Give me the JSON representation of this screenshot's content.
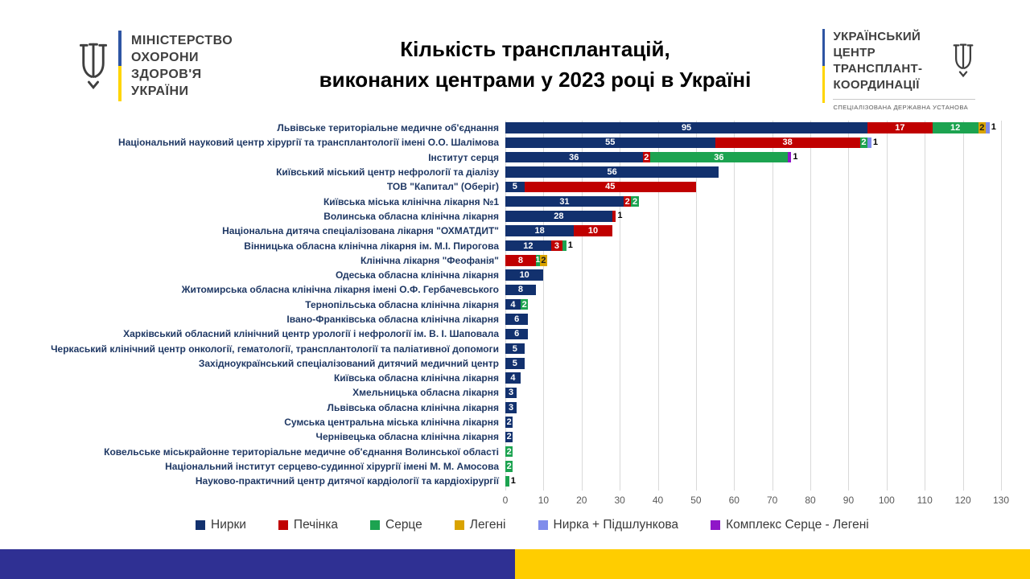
{
  "header": {
    "moh_logo": {
      "lines": [
        "МІНІСТЕРСТВО",
        "ОХОРОНИ",
        "ЗДОРОВ'Я",
        "УКРАЇНИ"
      ]
    },
    "title_line1": "Кількість трансплантацій,",
    "title_line2": "виконаних центрами у 2023 році в Україні",
    "uctc_logo": {
      "lines": [
        "УКРАЇНСЬКИЙ ЦЕНТР",
        "ТРАНСПЛАНТ-",
        "КООРДИНАЦІЇ"
      ],
      "subtitle": "СПЕЦІАЛІЗОВАНА ДЕРЖАВНА УСТАНОВА"
    }
  },
  "chart_data": {
    "type": "bar",
    "stacked": true,
    "orientation": "horizontal",
    "title": "Кількість трансплантацій, виконаних центрами у 2023 році в Україні",
    "xlim": [
      0,
      130
    ],
    "x_ticks": [
      0,
      10,
      20,
      30,
      40,
      50,
      60,
      70,
      80,
      90,
      100,
      110,
      120,
      130
    ],
    "grid": true,
    "legend_position": "bottom",
    "series_names": [
      "Нирки",
      "Печінка",
      "Серце",
      "Легені",
      "Нирка + Підшлункова",
      "Комплекс Серце - Легені"
    ],
    "series_colors": [
      "#12316E",
      "#C00000",
      "#1CA350",
      "#D9A300",
      "#7F8CEB",
      "#8F16C8"
    ],
    "rows": [
      {
        "label": "Львівське територіальне медичне об'єднання",
        "values": [
          95,
          17,
          12,
          2,
          1,
          0
        ]
      },
      {
        "label": "Національний науковий центр хірургії та трансплантології імені О.О. Шалімова",
        "values": [
          55,
          38,
          2,
          0,
          1,
          0
        ]
      },
      {
        "label": "Інститут серця",
        "values": [
          36,
          2,
          36,
          0,
          0,
          1
        ]
      },
      {
        "label": "Київський міський центр нефрології та діалізу",
        "values": [
          56,
          0,
          0,
          0,
          0,
          0
        ]
      },
      {
        "label": "ТОВ \"Капитал\" (Оберіг)",
        "values": [
          5,
          45,
          0,
          0,
          0,
          0
        ]
      },
      {
        "label": "Київська міська клінічна лікарня №1",
        "values": [
          31,
          2,
          2,
          0,
          0,
          0
        ]
      },
      {
        "label": "Волинська обласна клінічна лікарня",
        "values": [
          28,
          1,
          0,
          0,
          0,
          0
        ]
      },
      {
        "label": "Національна дитяча спеціалізована лікарня \"ОХМАТДИТ\"",
        "values": [
          18,
          10,
          0,
          0,
          0,
          0
        ]
      },
      {
        "label": "Вінницька обласна клінічна лікарня ім. М.І. Пирогова",
        "values": [
          12,
          3,
          1,
          0,
          0,
          0
        ]
      },
      {
        "label": "Клінічна лікарня \"Феофанія\"",
        "values": [
          0,
          8,
          1,
          2,
          0,
          0
        ]
      },
      {
        "label": "Одеська обласна клінічна лікарня",
        "values": [
          10,
          0,
          0,
          0,
          0,
          0
        ]
      },
      {
        "label": "Житомирська обласна клінічна лікарня імені О.Ф. Гербачевського",
        "values": [
          8,
          0,
          0,
          0,
          0,
          0
        ]
      },
      {
        "label": "Тернопільська обласна клінічна лікарня",
        "values": [
          4,
          0,
          2,
          0,
          0,
          0
        ]
      },
      {
        "label": "Івано-Франківська обласна клінічна лікарня",
        "values": [
          6,
          0,
          0,
          0,
          0,
          0
        ]
      },
      {
        "label": "Харківський обласний клінічний центр урології і нефрології ім. В. І. Шаповала",
        "values": [
          6,
          0,
          0,
          0,
          0,
          0
        ]
      },
      {
        "label": "Черкаський клінічний центр онкології, гематології, трансплантології та паліативної допомоги",
        "values": [
          5,
          0,
          0,
          0,
          0,
          0
        ]
      },
      {
        "label": "Західноукраїнський спеціалізований дитячий медичний центр",
        "values": [
          5,
          0,
          0,
          0,
          0,
          0
        ]
      },
      {
        "label": "Київська обласна клінічна лікарня",
        "values": [
          4,
          0,
          0,
          0,
          0,
          0
        ]
      },
      {
        "label": "Хмельницька обласна лікарня",
        "values": [
          3,
          0,
          0,
          0,
          0,
          0
        ]
      },
      {
        "label": "Львівська обласна клінічна лікарня",
        "values": [
          3,
          0,
          0,
          0,
          0,
          0
        ]
      },
      {
        "label": "Сумська центральна міська клінічна лікарня",
        "values": [
          2,
          0,
          0,
          0,
          0,
          0
        ]
      },
      {
        "label": "Чернівецька обласна клінічна лікарня",
        "values": [
          2,
          0,
          0,
          0,
          0,
          0
        ]
      },
      {
        "label": "Ковельське міськрайонне територіальне медичне об'єднання Волинської області",
        "values": [
          0,
          0,
          2,
          0,
          0,
          0
        ]
      },
      {
        "label": "Національний інститут серцево-судинної хірургії імені М. М. Амосова",
        "values": [
          0,
          0,
          2,
          0,
          0,
          0
        ]
      },
      {
        "label": "Науково-практичний центр дитячої кардіології та кардіохірургії",
        "values": [
          0,
          0,
          1,
          0,
          0,
          0
        ]
      }
    ]
  },
  "colors": {
    "grid": "#D9D9D9",
    "category_label": "#1F3864",
    "tick_label": "#595959",
    "footer_blue": "#2F3093",
    "footer_yellow": "#FFCD00"
  }
}
